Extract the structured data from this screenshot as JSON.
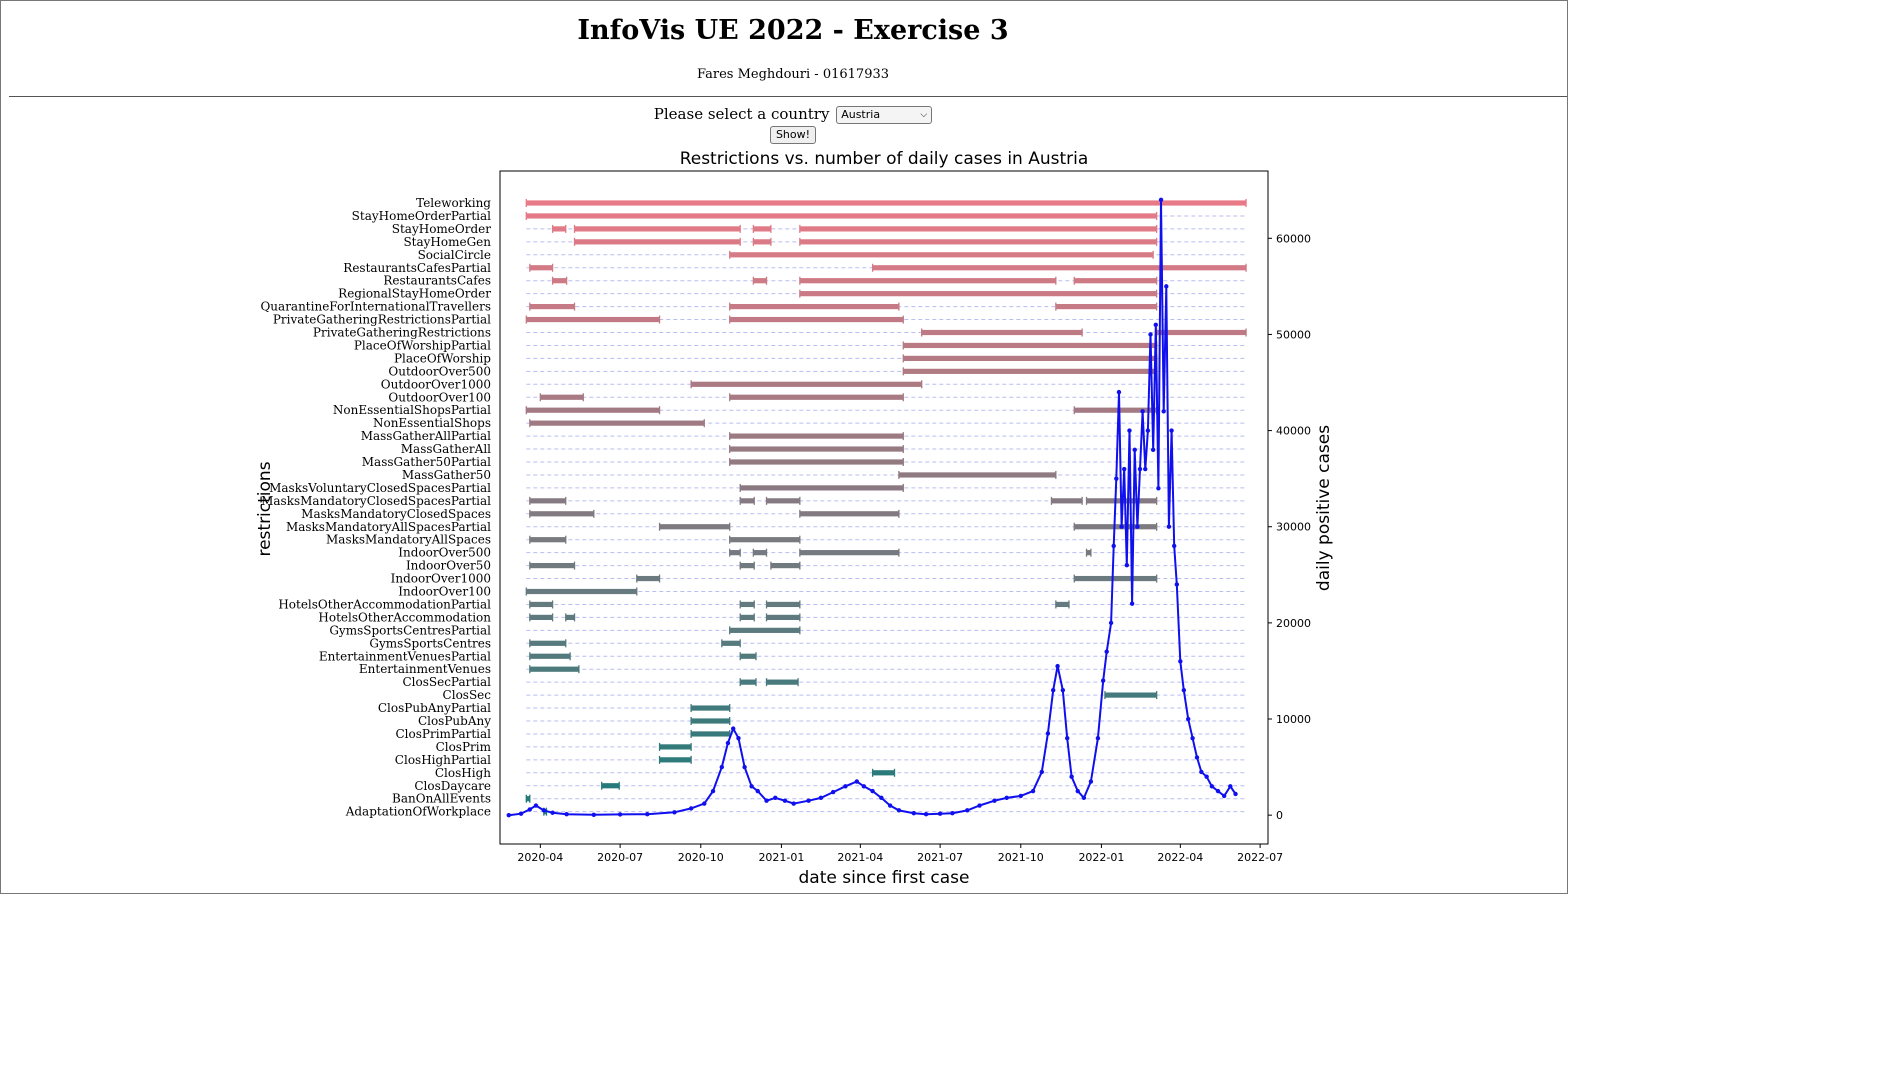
{
  "header": {
    "title": "InfoVis UE 2022 - Exercise 3",
    "author": "Fares Meghdouri - 01617933"
  },
  "controls": {
    "select_label": "Please select a country",
    "selected_country": "Austria",
    "show_label": "Show!"
  },
  "chart_data": {
    "type": "gantt+line",
    "title": "Restrictions vs. number of daily cases in Austria",
    "xlabel": "date since first case",
    "ylabel": "restrictions",
    "y2label": "daily positive cases",
    "xlim": [
      "2020-02-15",
      "2022-07-10"
    ],
    "y2lim": [
      -3000,
      67000
    ],
    "x_ticks": [
      "2020-04",
      "2020-07",
      "2020-10",
      "2021-01",
      "2021-04",
      "2021-07",
      "2021-10",
      "2022-01",
      "2022-04",
      "2022-07"
    ],
    "y2_ticks": [
      0,
      10000,
      20000,
      30000,
      40000,
      50000,
      60000
    ],
    "grid_guides": "dashed",
    "restrictions": [
      {
        "name": "Teleworking",
        "periods": [
          [
            "2020-03-16",
            "2022-06-15"
          ]
        ]
      },
      {
        "name": "StayHomeOrderPartial",
        "periods": [
          [
            "2020-03-16",
            "2022-03-05"
          ]
        ]
      },
      {
        "name": "StayHomeOrder",
        "periods": [
          [
            "2020-04-15",
            "2020-04-30"
          ],
          [
            "2020-05-10",
            "2020-11-15"
          ],
          [
            "2020-11-30",
            "2020-12-20"
          ],
          [
            "2021-01-22",
            "2022-03-05"
          ]
        ]
      },
      {
        "name": "StayHomeGen",
        "periods": [
          [
            "2020-05-10",
            "2020-11-15"
          ],
          [
            "2020-11-30",
            "2020-12-20"
          ],
          [
            "2021-01-22",
            "2022-03-05"
          ]
        ]
      },
      {
        "name": "SocialCircle",
        "periods": [
          [
            "2020-11-03",
            "2022-03-01"
          ]
        ]
      },
      {
        "name": "RestaurantsCafesPartial",
        "periods": [
          [
            "2020-03-20",
            "2020-04-15"
          ],
          [
            "2021-04-15",
            "2022-06-15"
          ]
        ]
      },
      {
        "name": "RestaurantsCafes",
        "periods": [
          [
            "2020-04-15",
            "2020-05-01"
          ],
          [
            "2020-11-30",
            "2020-12-15"
          ],
          [
            "2021-01-22",
            "2021-11-10"
          ],
          [
            "2021-12-01",
            "2022-03-05"
          ]
        ]
      },
      {
        "name": "RegionalStayHomeOrder",
        "periods": [
          [
            "2021-01-22",
            "2022-03-05"
          ]
        ]
      },
      {
        "name": "QuarantineForInternationalTravellers",
        "periods": [
          [
            "2020-03-20",
            "2020-05-10"
          ],
          [
            "2020-11-03",
            "2021-05-15"
          ],
          [
            "2021-11-10",
            "2022-03-05"
          ]
        ]
      },
      {
        "name": "PrivateGatheringRestrictionsPartial",
        "periods": [
          [
            "2020-03-16",
            "2020-08-15"
          ],
          [
            "2020-11-03",
            "2021-05-20"
          ]
        ]
      },
      {
        "name": "PrivateGatheringRestrictions",
        "periods": [
          [
            "2021-06-10",
            "2021-12-10"
          ],
          [
            "2022-03-05",
            "2022-06-15"
          ]
        ]
      },
      {
        "name": "PlaceOfWorshipPartial",
        "periods": [
          [
            "2021-05-20",
            "2022-03-05"
          ]
        ]
      },
      {
        "name": "PlaceOfWorship",
        "periods": [
          [
            "2021-05-20",
            "2022-03-05"
          ]
        ]
      },
      {
        "name": "OutdoorOver500",
        "periods": [
          [
            "2021-05-20",
            "2022-03-05"
          ]
        ]
      },
      {
        "name": "OutdoorOver1000",
        "periods": [
          [
            "2020-09-20",
            "2021-06-10"
          ]
        ]
      },
      {
        "name": "OutdoorOver100",
        "periods": [
          [
            "2020-04-01",
            "2020-05-20"
          ],
          [
            "2020-11-03",
            "2021-05-20"
          ]
        ]
      },
      {
        "name": "NonEssentialShopsPartial",
        "periods": [
          [
            "2020-03-16",
            "2020-08-15"
          ],
          [
            "2021-12-01",
            "2022-03-05"
          ]
        ]
      },
      {
        "name": "NonEssentialShops",
        "periods": [
          [
            "2020-03-20",
            "2020-10-05"
          ]
        ]
      },
      {
        "name": "MassGatherAllPartial",
        "periods": [
          [
            "2020-11-03",
            "2021-05-20"
          ]
        ]
      },
      {
        "name": "MassGatherAll",
        "periods": [
          [
            "2020-11-03",
            "2021-05-20"
          ]
        ]
      },
      {
        "name": "MassGather50Partial",
        "periods": [
          [
            "2020-11-03",
            "2021-05-20"
          ]
        ]
      },
      {
        "name": "MassGather50",
        "periods": [
          [
            "2021-05-15",
            "2021-11-10"
          ]
        ]
      },
      {
        "name": "MasksVoluntaryClosedSpacesPartial",
        "periods": [
          [
            "2020-11-15",
            "2021-05-20"
          ]
        ]
      },
      {
        "name": "MasksMandatoryClosedSpacesPartial",
        "periods": [
          [
            "2020-03-20",
            "2020-04-30"
          ],
          [
            "2020-11-15",
            "2020-12-01"
          ],
          [
            "2020-12-15",
            "2021-01-22"
          ],
          [
            "2021-11-05",
            "2021-12-10"
          ],
          [
            "2021-12-15",
            "2022-03-05"
          ]
        ]
      },
      {
        "name": "MasksMandatoryClosedSpaces",
        "periods": [
          [
            "2020-03-20",
            "2020-06-01"
          ],
          [
            "2021-01-22",
            "2021-05-15"
          ]
        ]
      },
      {
        "name": "MasksMandatoryAllSpacesPartial",
        "periods": [
          [
            "2020-08-15",
            "2020-11-03"
          ],
          [
            "2021-12-01",
            "2022-03-05"
          ]
        ]
      },
      {
        "name": "MasksMandatoryAllSpaces",
        "periods": [
          [
            "2020-03-20",
            "2020-04-30"
          ],
          [
            "2020-11-03",
            "2021-01-22"
          ]
        ]
      },
      {
        "name": "IndoorOver500",
        "periods": [
          [
            "2020-11-03",
            "2020-11-15"
          ],
          [
            "2020-11-30",
            "2020-12-15"
          ],
          [
            "2021-01-22",
            "2021-05-15"
          ],
          [
            "2021-12-15",
            "2021-12-20"
          ]
        ]
      },
      {
        "name": "IndoorOver50",
        "periods": [
          [
            "2020-03-20",
            "2020-05-10"
          ],
          [
            "2020-11-15",
            "2020-12-01"
          ],
          [
            "2020-12-20",
            "2021-01-22"
          ]
        ]
      },
      {
        "name": "IndoorOver1000",
        "periods": [
          [
            "2020-07-20",
            "2020-08-15"
          ],
          [
            "2021-12-01",
            "2022-03-05"
          ]
        ]
      },
      {
        "name": "IndoorOver100",
        "periods": [
          [
            "2020-03-16",
            "2020-07-20"
          ]
        ]
      },
      {
        "name": "HotelsOtherAccommodationPartial",
        "periods": [
          [
            "2020-03-20",
            "2020-04-15"
          ],
          [
            "2020-11-15",
            "2020-12-01"
          ],
          [
            "2020-12-15",
            "2021-01-22"
          ],
          [
            "2021-11-10",
            "2021-11-25"
          ]
        ]
      },
      {
        "name": "HotelsOtherAccommodation",
        "periods": [
          [
            "2020-03-20",
            "2020-04-15"
          ],
          [
            "2020-04-30",
            "2020-05-10"
          ],
          [
            "2020-11-15",
            "2020-12-01"
          ],
          [
            "2020-12-15",
            "2021-01-22"
          ]
        ]
      },
      {
        "name": "GymsSportsCentresPartial",
        "periods": [
          [
            "2020-11-03",
            "2021-01-22"
          ]
        ]
      },
      {
        "name": "GymsSportsCentres",
        "periods": [
          [
            "2020-03-20",
            "2020-04-30"
          ],
          [
            "2020-10-25",
            "2020-11-15"
          ]
        ]
      },
      {
        "name": "EntertainmentVenuesPartial",
        "periods": [
          [
            "2020-03-20",
            "2020-05-05"
          ],
          [
            "2020-11-15",
            "2020-12-03"
          ]
        ]
      },
      {
        "name": "EntertainmentVenues",
        "periods": [
          [
            "2020-03-20",
            "2020-05-15"
          ]
        ]
      },
      {
        "name": "ClosSecPartial",
        "periods": [
          [
            "2020-11-15",
            "2020-12-03"
          ],
          [
            "2020-12-15",
            "2021-01-20"
          ]
        ]
      },
      {
        "name": "ClosSec",
        "periods": [
          [
            "2022-01-05",
            "2022-03-05"
          ]
        ]
      },
      {
        "name": "ClosPubAnyPartial",
        "periods": [
          [
            "2020-09-20",
            "2020-11-03"
          ]
        ]
      },
      {
        "name": "ClosPubAny",
        "periods": [
          [
            "2020-09-20",
            "2020-11-03"
          ]
        ]
      },
      {
        "name": "ClosPrimPartial",
        "periods": [
          [
            "2020-09-20",
            "2020-11-03"
          ]
        ]
      },
      {
        "name": "ClosPrim",
        "periods": [
          [
            "2020-08-15",
            "2020-09-20"
          ]
        ]
      },
      {
        "name": "ClosHighPartial",
        "periods": [
          [
            "2020-08-15",
            "2020-09-20"
          ]
        ]
      },
      {
        "name": "ClosHigh",
        "periods": [
          [
            "2021-04-15",
            "2021-05-10"
          ]
        ]
      },
      {
        "name": "ClosDaycare",
        "periods": [
          [
            "2020-06-10",
            "2020-06-30"
          ]
        ]
      },
      {
        "name": "BanOnAllEvents",
        "periods": [
          [
            "2020-03-16",
            "2020-03-20"
          ]
        ]
      },
      {
        "name": "AdaptationOfWorkplace",
        "periods": [
          [
            "2020-04-05",
            "2020-04-08"
          ]
        ]
      }
    ],
    "daily_cases": {
      "dates": [
        "2020-02-25",
        "2020-03-10",
        "2020-03-20",
        "2020-03-27",
        "2020-04-05",
        "2020-04-15",
        "2020-05-01",
        "2020-06-01",
        "2020-07-01",
        "2020-08-01",
        "2020-09-01",
        "2020-09-20",
        "2020-10-05",
        "2020-10-15",
        "2020-10-25",
        "2020-11-01",
        "2020-11-07",
        "2020-11-13",
        "2020-11-20",
        "2020-11-28",
        "2020-12-05",
        "2020-12-15",
        "2020-12-25",
        "2021-01-05",
        "2021-01-15",
        "2021-02-01",
        "2021-02-15",
        "2021-03-01",
        "2021-03-15",
        "2021-03-28",
        "2021-04-05",
        "2021-04-15",
        "2021-04-25",
        "2021-05-05",
        "2021-05-15",
        "2021-06-01",
        "2021-06-15",
        "2021-07-01",
        "2021-07-15",
        "2021-08-01",
        "2021-08-15",
        "2021-09-01",
        "2021-09-15",
        "2021-10-01",
        "2021-10-15",
        "2021-10-25",
        "2021-11-01",
        "2021-11-07",
        "2021-11-12",
        "2021-11-18",
        "2021-11-23",
        "2021-11-28",
        "2021-12-05",
        "2021-12-12",
        "2021-12-20",
        "2021-12-28",
        "2022-01-03",
        "2022-01-07",
        "2022-01-12",
        "2022-01-15",
        "2022-01-18",
        "2022-01-21",
        "2022-01-24",
        "2022-01-27",
        "2022-01-30",
        "2022-02-02",
        "2022-02-05",
        "2022-02-08",
        "2022-02-11",
        "2022-02-14",
        "2022-02-17",
        "2022-02-20",
        "2022-02-23",
        "2022-02-26",
        "2022-03-01",
        "2022-03-04",
        "2022-03-07",
        "2022-03-10",
        "2022-03-13",
        "2022-03-16",
        "2022-03-19",
        "2022-03-22",
        "2022-03-25",
        "2022-03-28",
        "2022-04-01",
        "2022-04-05",
        "2022-04-10",
        "2022-04-15",
        "2022-04-20",
        "2022-04-25",
        "2022-05-01",
        "2022-05-07",
        "2022-05-14",
        "2022-05-21",
        "2022-05-28",
        "2022-06-03"
      ],
      "values": [
        0,
        150,
        600,
        1000,
        500,
        250,
        100,
        40,
        80,
        100,
        300,
        700,
        1200,
        2500,
        5000,
        7500,
        9000,
        8000,
        5000,
        3000,
        2500,
        1500,
        1800,
        1500,
        1200,
        1500,
        1800,
        2400,
        3000,
        3500,
        3000,
        2500,
        1800,
        1000,
        500,
        200,
        100,
        150,
        200,
        500,
        1000,
        1500,
        1800,
        2000,
        2500,
        4500,
        8500,
        13000,
        15500,
        13000,
        8000,
        4000,
        2500,
        1800,
        3500,
        8000,
        14000,
        17000,
        20000,
        28000,
        35000,
        44000,
        30000,
        36000,
        26000,
        40000,
        22000,
        38000,
        30000,
        36000,
        42000,
        36000,
        40000,
        50000,
        38000,
        51000,
        34000,
        64000,
        42000,
        55000,
        30000,
        40000,
        28000,
        24000,
        16000,
        13000,
        10000,
        8000,
        6000,
        4500,
        4000,
        3000,
        2500,
        2000,
        3000,
        2200
      ]
    }
  }
}
